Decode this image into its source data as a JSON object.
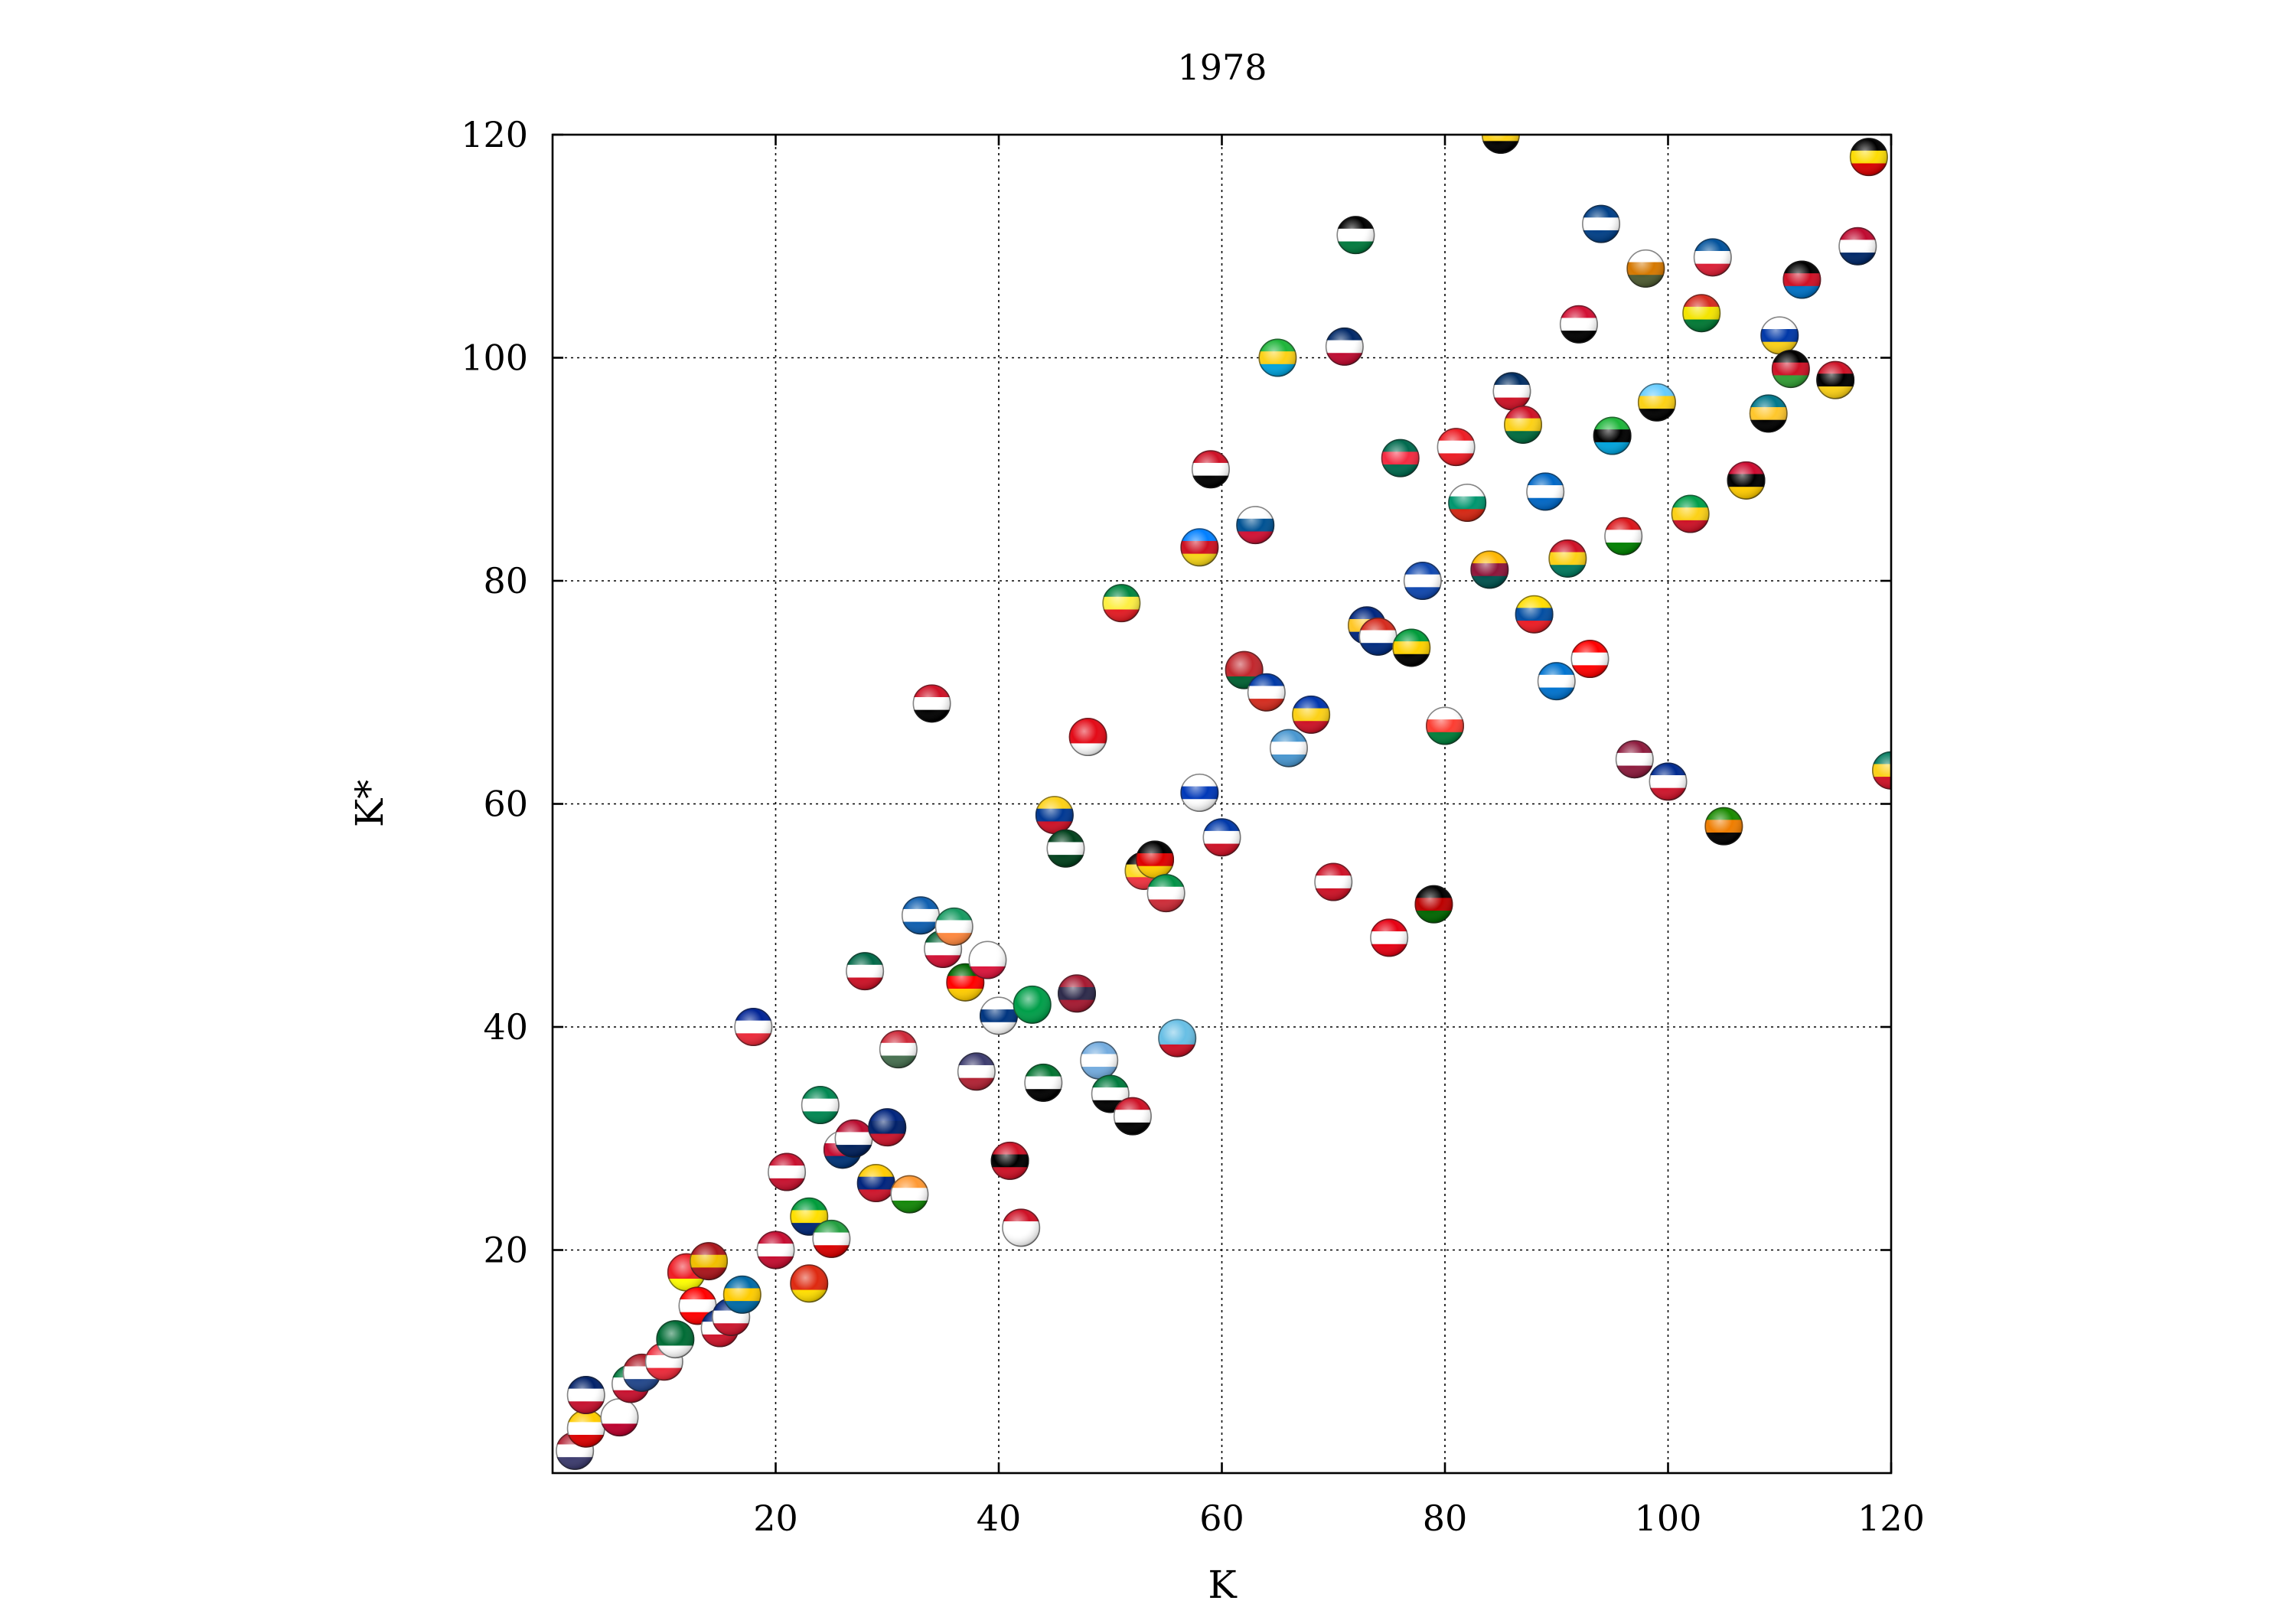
{
  "chart_data": {
    "type": "scatter",
    "title": "1978",
    "xlabel": "K",
    "ylabel": "K*",
    "xlim": [
      0,
      120
    ],
    "ylim": [
      0,
      120
    ],
    "xticks": [
      20,
      40,
      60,
      80,
      100,
      120
    ],
    "yticks": [
      20,
      40,
      60,
      80,
      100,
      120
    ],
    "grid": true,
    "legend": "none",
    "marker": "country-flag-sphere",
    "points": [
      {
        "x": 2,
        "y": 2,
        "colors": [
          "#b22234",
          "#ffffff",
          "#3c3b6e"
        ]
      },
      {
        "x": 3,
        "y": 4,
        "colors": [
          "#ffcc00",
          "#ffffff",
          "#dd0000"
        ]
      },
      {
        "x": 3,
        "y": 7,
        "colors": [
          "#012169",
          "#ffffff",
          "#c8102e"
        ]
      },
      {
        "x": 6,
        "y": 5,
        "colors": [
          "#ffffff",
          "#ffffff",
          "#bc002d"
        ]
      },
      {
        "x": 7,
        "y": 8,
        "colors": [
          "#007a3d",
          "#ffffff",
          "#c8102e"
        ]
      },
      {
        "x": 8,
        "y": 9,
        "colors": [
          "#ae1c28",
          "#ffffff",
          "#21468b"
        ]
      },
      {
        "x": 10,
        "y": 10,
        "colors": [
          "#ed2939",
          "#ffffff",
          "#ed2939"
        ]
      },
      {
        "x": 11,
        "y": 12,
        "colors": [
          "#006c35",
          "#006c35",
          "#ffffff"
        ]
      },
      {
        "x": 12,
        "y": 18,
        "colors": [
          "#ee1c25",
          "#ee1c25",
          "#ffff00"
        ]
      },
      {
        "x": 13,
        "y": 15,
        "colors": [
          "#ff0000",
          "#ffffff",
          "#ff0000"
        ]
      },
      {
        "x": 14,
        "y": 19,
        "colors": [
          "#aa151b",
          "#f1bf00",
          "#aa151b"
        ]
      },
      {
        "x": 15,
        "y": 13,
        "colors": [
          "#00247d",
          "#ffffff",
          "#cf142b"
        ]
      },
      {
        "x": 16,
        "y": 14,
        "colors": [
          "#00247d",
          "#ffffff",
          "#cc142b"
        ]
      },
      {
        "x": 17,
        "y": 16,
        "colors": [
          "#006aa7",
          "#fecc00",
          "#006aa7"
        ]
      },
      {
        "x": 18,
        "y": 40,
        "colors": [
          "#002395",
          "#ffffff",
          "#ed2939"
        ]
      },
      {
        "x": 20,
        "y": 20,
        "colors": [
          "#c60c30",
          "#ffffff",
          "#c60c30"
        ]
      },
      {
        "x": 21,
        "y": 27,
        "colors": [
          "#c8102e",
          "#ffffff",
          "#c8102e"
        ]
      },
      {
        "x": 23,
        "y": 23,
        "colors": [
          "#009c3b",
          "#ffdf00",
          "#002776"
        ]
      },
      {
        "x": 23,
        "y": 17,
        "colors": [
          "#de2910",
          "#de2910",
          "#ffde00"
        ]
      },
      {
        "x": 24,
        "y": 33,
        "colors": [
          "#008751",
          "#ffffff",
          "#008751"
        ]
      },
      {
        "x": 25,
        "y": 21,
        "colors": [
          "#239f40",
          "#ffffff",
          "#da0000"
        ]
      },
      {
        "x": 26,
        "y": 29,
        "colors": [
          "#ffffff",
          "#c60c30",
          "#003478"
        ]
      },
      {
        "x": 27,
        "y": 30,
        "colors": [
          "#ba0c2f",
          "#ffffff",
          "#00205b"
        ]
      },
      {
        "x": 28,
        "y": 45,
        "colors": [
          "#006847",
          "#ffffff",
          "#ce1126"
        ]
      },
      {
        "x": 29,
        "y": 26,
        "colors": [
          "#ffcc00",
          "#00247d",
          "#cf142b"
        ]
      },
      {
        "x": 30,
        "y": 31,
        "colors": [
          "#00247d",
          "#012169",
          "#cc142b"
        ]
      },
      {
        "x": 31,
        "y": 38,
        "colors": [
          "#ce2939",
          "#ffffff",
          "#477050"
        ]
      },
      {
        "x": 32,
        "y": 25,
        "colors": [
          "#ff9933",
          "#ffffff",
          "#138808"
        ]
      },
      {
        "x": 33,
        "y": 50,
        "colors": [
          "#0d5eaf",
          "#ffffff",
          "#0d5eaf"
        ]
      },
      {
        "x": 34,
        "y": 69,
        "colors": [
          "#ce1126",
          "#ffffff",
          "#000000"
        ]
      },
      {
        "x": 35,
        "y": 47,
        "colors": [
          "#006233",
          "#ffffff",
          "#d21034"
        ]
      },
      {
        "x": 36,
        "y": 49,
        "colors": [
          "#169b62",
          "#ffffff",
          "#ff883e"
        ]
      },
      {
        "x": 37,
        "y": 44,
        "colors": [
          "#006600",
          "#ff0000",
          "#ffcc00"
        ]
      },
      {
        "x": 38,
        "y": 36,
        "colors": [
          "#3c3b6e",
          "#ffffff",
          "#b22234"
        ]
      },
      {
        "x": 39,
        "y": 46,
        "colors": [
          "#ffffff",
          "#ffffff",
          "#dc143c"
        ]
      },
      {
        "x": 40,
        "y": 41,
        "colors": [
          "#ffffff",
          "#003580",
          "#ffffff"
        ]
      },
      {
        "x": 41,
        "y": 28,
        "colors": [
          "#ce1126",
          "#000000",
          "#ce1126"
        ]
      },
      {
        "x": 42,
        "y": 22,
        "colors": [
          "#ce1126",
          "#ffffff",
          "#ffffff"
        ]
      },
      {
        "x": 43,
        "y": 42,
        "colors": [
          "#009e49",
          "#009e49",
          "#009e49"
        ]
      },
      {
        "x": 44,
        "y": 35,
        "colors": [
          "#00732f",
          "#ffffff",
          "#000000"
        ]
      },
      {
        "x": 45,
        "y": 59,
        "colors": [
          "#fcd116",
          "#003893",
          "#ce1126"
        ]
      },
      {
        "x": 46,
        "y": 56,
        "colors": [
          "#01411c",
          "#ffffff",
          "#01411c"
        ]
      },
      {
        "x": 47,
        "y": 43,
        "colors": [
          "#a51931",
          "#2d2a4a",
          "#a51931"
        ]
      },
      {
        "x": 48,
        "y": 66,
        "colors": [
          "#e30a17",
          "#e30a17",
          "#ffffff"
        ]
      },
      {
        "x": 49,
        "y": 37,
        "colors": [
          "#74acdf",
          "#ffffff",
          "#74acdf"
        ]
      },
      {
        "x": 50,
        "y": 34,
        "colors": [
          "#007a3d",
          "#ffffff",
          "#000000"
        ]
      },
      {
        "x": 51,
        "y": 78,
        "colors": [
          "#00853f",
          "#fdef42",
          "#e31b23"
        ]
      },
      {
        "x": 52,
        "y": 32,
        "colors": [
          "#ce1126",
          "#ffffff",
          "#000000"
        ]
      },
      {
        "x": 53,
        "y": 54,
        "colors": [
          "#000000",
          "#fdda24",
          "#ef3340"
        ]
      },
      {
        "x": 54,
        "y": 55,
        "colors": [
          "#000000",
          "#dd0000",
          "#ffcc00"
        ]
      },
      {
        "x": 55,
        "y": 52,
        "colors": [
          "#009246",
          "#ffffff",
          "#ce2b37"
        ]
      },
      {
        "x": 56,
        "y": 39,
        "colors": [
          "#68bfe5",
          "#68bfe5",
          "#ce1126"
        ]
      },
      {
        "x": 58,
        "y": 61,
        "colors": [
          "#ffffff",
          "#0038b8",
          "#ffffff"
        ]
      },
      {
        "x": 58,
        "y": 83,
        "colors": [
          "#007fff",
          "#ce1021",
          "#f7d618"
        ]
      },
      {
        "x": 59,
        "y": 90,
        "colors": [
          "#ce1126",
          "#ffffff",
          "#000000"
        ]
      },
      {
        "x": 60,
        "y": 57,
        "colors": [
          "#0038a8",
          "#ffffff",
          "#ce1126"
        ]
      },
      {
        "x": 62,
        "y": 72,
        "colors": [
          "#c1272d",
          "#c1272d",
          "#006233"
        ]
      },
      {
        "x": 63,
        "y": 85,
        "colors": [
          "#ffffff",
          "#005293",
          "#d21034"
        ]
      },
      {
        "x": 64,
        "y": 70,
        "colors": [
          "#0039a6",
          "#ffffff",
          "#d52b1e"
        ]
      },
      {
        "x": 65,
        "y": 100,
        "colors": [
          "#1eb53a",
          "#fcd116",
          "#00a3dd"
        ]
      },
      {
        "x": 66,
        "y": 65,
        "colors": [
          "#4997d0",
          "#ffffff",
          "#4997d0"
        ]
      },
      {
        "x": 68,
        "y": 68,
        "colors": [
          "#0035ad",
          "#fcd116",
          "#ce1126"
        ]
      },
      {
        "x": 70,
        "y": 53,
        "colors": [
          "#ce1126",
          "#ffffff",
          "#ce1126"
        ]
      },
      {
        "x": 71,
        "y": 101,
        "colors": [
          "#002868",
          "#ffffff",
          "#bf0a30"
        ]
      },
      {
        "x": 72,
        "y": 111,
        "colors": [
          "#000000",
          "#ffffff",
          "#007a3d"
        ]
      },
      {
        "x": 73,
        "y": 76,
        "colors": [
          "#00267f",
          "#ffc726",
          "#00267f"
        ]
      },
      {
        "x": 74,
        "y": 75,
        "colors": [
          "#d52b1e",
          "#ffffff",
          "#002b7f"
        ]
      },
      {
        "x": 75,
        "y": 48,
        "colors": [
          "#e70013",
          "#ffffff",
          "#e70013"
        ]
      },
      {
        "x": 76,
        "y": 91,
        "colors": [
          "#006a4e",
          "#f42a41",
          "#006a4e"
        ]
      },
      {
        "x": 77,
        "y": 74,
        "colors": [
          "#009b3a",
          "#fed100",
          "#000000"
        ]
      },
      {
        "x": 78,
        "y": 80,
        "colors": [
          "#0f47af",
          "#ffffff",
          "#0f47af"
        ]
      },
      {
        "x": 79,
        "y": 51,
        "colors": [
          "#000000",
          "#bb0000",
          "#006600"
        ]
      },
      {
        "x": 80,
        "y": 67,
        "colors": [
          "#ffffff",
          "#fc3d32",
          "#007e3a"
        ]
      },
      {
        "x": 81,
        "y": 92,
        "colors": [
          "#ed1c24",
          "#ffffff",
          "#ed1c24"
        ]
      },
      {
        "x": 82,
        "y": 87,
        "colors": [
          "#ffffff",
          "#00966e",
          "#d62612"
        ]
      },
      {
        "x": 84,
        "y": 81,
        "colors": [
          "#ffb700",
          "#8d153a",
          "#00534e"
        ]
      },
      {
        "x": 85,
        "y": 120,
        "colors": [
          "#000000",
          "#fcd116",
          "#000000"
        ]
      },
      {
        "x": 86,
        "y": 97,
        "colors": [
          "#002d62",
          "#ffffff",
          "#ce1126"
        ]
      },
      {
        "x": 87,
        "y": 94,
        "colors": [
          "#ce1126",
          "#fcd116",
          "#006b3f"
        ]
      },
      {
        "x": 88,
        "y": 77,
        "colors": [
          "#ffdd00",
          "#034ea2",
          "#ed1c24"
        ]
      },
      {
        "x": 89,
        "y": 88,
        "colors": [
          "#0067c6",
          "#ffffff",
          "#0067c6"
        ]
      },
      {
        "x": 90,
        "y": 71,
        "colors": [
          "#0073cf",
          "#ffffff",
          "#0073cf"
        ]
      },
      {
        "x": 91,
        "y": 82,
        "colors": [
          "#ce1126",
          "#fcd116",
          "#007a5e"
        ]
      },
      {
        "x": 92,
        "y": 103,
        "colors": [
          "#d21034",
          "#ffffff",
          "#000000"
        ]
      },
      {
        "x": 93,
        "y": 73,
        "colors": [
          "#ff0000",
          "#ffffff",
          "#ff0000"
        ]
      },
      {
        "x": 94,
        "y": 112,
        "colors": [
          "#003f87",
          "#ffffff",
          "#003f87"
        ]
      },
      {
        "x": 95,
        "y": 93,
        "colors": [
          "#1eb53a",
          "#000000",
          "#00a3dd"
        ]
      },
      {
        "x": 96,
        "y": 84,
        "colors": [
          "#db161b",
          "#ffffff",
          "#008000"
        ]
      },
      {
        "x": 97,
        "y": 64,
        "colors": [
          "#8d1b3d",
          "#ffffff",
          "#8d1b3d"
        ]
      },
      {
        "x": 98,
        "y": 108,
        "colors": [
          "#ffffff",
          "#d57800",
          "#4e5b31"
        ]
      },
      {
        "x": 99,
        "y": 96,
        "colors": [
          "#66ccff",
          "#fcd116",
          "#000000"
        ]
      },
      {
        "x": 100,
        "y": 62,
        "colors": [
          "#002a8f",
          "#ffffff",
          "#cf142b"
        ]
      },
      {
        "x": 102,
        "y": 86,
        "colors": [
          "#009e49",
          "#fcd116",
          "#ce1126"
        ]
      },
      {
        "x": 103,
        "y": 104,
        "colors": [
          "#d52b1e",
          "#f4e400",
          "#007934"
        ]
      },
      {
        "x": 104,
        "y": 109,
        "colors": [
          "#02529c",
          "#ffffff",
          "#dc1e35"
        ]
      },
      {
        "x": 105,
        "y": 58,
        "colors": [
          "#198a00",
          "#ef7d00",
          "#000000"
        ]
      },
      {
        "x": 107,
        "y": 89,
        "colors": [
          "#cc092f",
          "#000000",
          "#ffcb00"
        ]
      },
      {
        "x": 109,
        "y": 95,
        "colors": [
          "#00778b",
          "#ffc72c",
          "#000000"
        ]
      },
      {
        "x": 110,
        "y": 102,
        "colors": [
          "#ffffff",
          "#0038a8",
          "#fcd116"
        ]
      },
      {
        "x": 111,
        "y": 99,
        "colors": [
          "#000000",
          "#ce1126",
          "#339e35"
        ]
      },
      {
        "x": 112,
        "y": 107,
        "colors": [
          "#000000",
          "#ce1126",
          "#0072c6"
        ]
      },
      {
        "x": 115,
        "y": 98,
        "colors": [
          "#ce1126",
          "#000000",
          "#fcd116"
        ]
      },
      {
        "x": 117,
        "y": 110,
        "colors": [
          "#bf0a30",
          "#ffffff",
          "#002868"
        ]
      },
      {
        "x": 118,
        "y": 118,
        "colors": [
          "#000000",
          "#fcdc04",
          "#d90000"
        ]
      },
      {
        "x": 120,
        "y": 63,
        "colors": [
          "#007a5e",
          "#fcd116",
          "#ce1126"
        ]
      }
    ]
  }
}
